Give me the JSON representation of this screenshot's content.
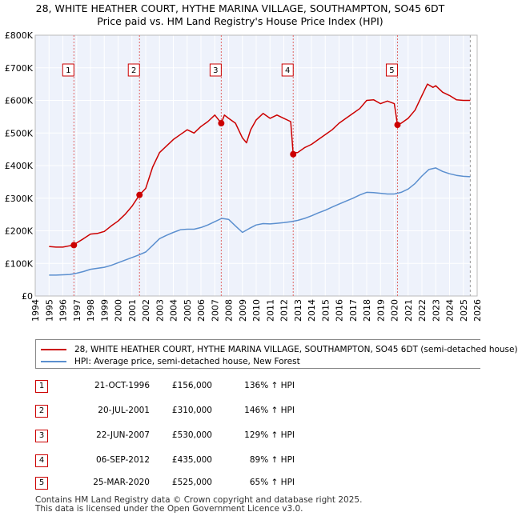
{
  "title_line1": "28, WHITE HEATHER COURT, HYTHE MARINA VILLAGE, SOUTHAMPTON, SO45 6DT",
  "title_line2": "Price paid vs. HM Land Registry's House Price Index (HPI)",
  "chart_data": {
    "type": "line",
    "title": "28, WHITE HEATHER COURT, HYTHE MARINA VILLAGE, SOUTHAMPTON, SO45 6DT",
    "subtitle": "Price paid vs. HM Land Registry's House Price Index (HPI)",
    "xlim": [
      1994,
      2026
    ],
    "ylim": [
      0,
      800000
    ],
    "x_ticks": [
      1994,
      1995,
      1996,
      1997,
      1998,
      1999,
      2000,
      2001,
      2002,
      2003,
      2004,
      2005,
      2006,
      2007,
      2008,
      2009,
      2010,
      2011,
      2012,
      2013,
      2014,
      2015,
      2016,
      2017,
      2018,
      2019,
      2020,
      2021,
      2022,
      2023,
      2024,
      2025,
      2026
    ],
    "y_ticks": [
      0,
      100000,
      200000,
      300000,
      400000,
      500000,
      600000,
      700000,
      800000
    ],
    "y_tick_labels": [
      "£0",
      "£100K",
      "£200K",
      "£300K",
      "£400K",
      "£500K",
      "£600K",
      "£700K",
      "£800K"
    ],
    "data_end_year": 2025.5,
    "series": [
      {
        "name": "28, WHITE HEATHER COURT, HYTHE MARINA VILLAGE, SOUTHAMPTON, SO45 6DT (semi-detached house)",
        "color": "#cc0000",
        "x": [
          1995.0,
          1995.5,
          1996.0,
          1996.5,
          1996.8,
          1997.0,
          1997.5,
          1998.0,
          1998.5,
          1999.0,
          1999.5,
          2000.0,
          2000.5,
          2001.0,
          2001.55,
          2002.0,
          2002.5,
          2003.0,
          2003.5,
          2004.0,
          2004.5,
          2005.0,
          2005.5,
          2006.0,
          2006.5,
          2007.0,
          2007.47,
          2007.7,
          2008.0,
          2008.5,
          2009.0,
          2009.3,
          2009.6,
          2010.0,
          2010.5,
          2011.0,
          2011.5,
          2012.0,
          2012.5,
          2012.68,
          2012.8,
          2013.0,
          2013.5,
          2014.0,
          2014.5,
          2015.0,
          2015.5,
          2016.0,
          2016.5,
          2017.0,
          2017.5,
          2018.0,
          2018.5,
          2019.0,
          2019.5,
          2020.0,
          2020.23,
          2020.5,
          2021.0,
          2021.5,
          2022.0,
          2022.4,
          2022.8,
          2023.0,
          2023.5,
          2024.0,
          2024.5,
          2025.0,
          2025.5
        ],
        "values": [
          152000,
          150000,
          150000,
          154000,
          156000,
          163000,
          176000,
          190000,
          192000,
          198000,
          215000,
          230000,
          250000,
          275000,
          310000,
          330000,
          395000,
          440000,
          460000,
          480000,
          495000,
          510000,
          500000,
          520000,
          535000,
          555000,
          530000,
          555000,
          545000,
          530000,
          485000,
          470000,
          510000,
          540000,
          560000,
          545000,
          555000,
          545000,
          535000,
          435000,
          440000,
          440000,
          455000,
          465000,
          480000,
          495000,
          510000,
          530000,
          545000,
          560000,
          575000,
          600000,
          602000,
          590000,
          598000,
          590000,
          525000,
          530000,
          545000,
          570000,
          615000,
          650000,
          640000,
          645000,
          625000,
          615000,
          602000,
          600000,
          600000
        ]
      },
      {
        "name": "HPI: Average price, semi-detached house, New Forest",
        "color": "#5b8fcf",
        "x": [
          1995.0,
          1995.5,
          1996.0,
          1996.5,
          1997.0,
          1997.5,
          1998.0,
          1998.5,
          1999.0,
          1999.5,
          2000.0,
          2000.5,
          2001.0,
          2001.5,
          2002.0,
          2002.5,
          2003.0,
          2003.5,
          2004.0,
          2004.5,
          2005.0,
          2005.5,
          2006.0,
          2006.5,
          2007.0,
          2007.5,
          2008.0,
          2008.5,
          2009.0,
          2009.5,
          2010.0,
          2010.5,
          2011.0,
          2011.5,
          2012.0,
          2012.5,
          2013.0,
          2013.5,
          2014.0,
          2014.5,
          2015.0,
          2015.5,
          2016.0,
          2016.5,
          2017.0,
          2017.5,
          2018.0,
          2018.5,
          2019.0,
          2019.5,
          2020.0,
          2020.5,
          2021.0,
          2021.5,
          2022.0,
          2022.5,
          2023.0,
          2023.5,
          2024.0,
          2024.5,
          2025.0,
          2025.5
        ],
        "values": [
          64000,
          64000,
          65000,
          66000,
          70000,
          75000,
          82000,
          85000,
          88000,
          94000,
          102000,
          110000,
          118000,
          126000,
          135000,
          155000,
          176000,
          186000,
          195000,
          203000,
          205000,
          205000,
          210000,
          218000,
          228000,
          238000,
          235000,
          215000,
          195000,
          207000,
          218000,
          222000,
          221000,
          223000,
          225000,
          228000,
          232000,
          238000,
          246000,
          255000,
          263000,
          273000,
          282000,
          291000,
          300000,
          310000,
          318000,
          317000,
          315000,
          313000,
          313000,
          318000,
          328000,
          345000,
          368000,
          388000,
          393000,
          382000,
          375000,
          370000,
          367000,
          366000
        ]
      }
    ],
    "purchase_markers": [
      {
        "label": "1",
        "x": 1996.8,
        "value": 156000
      },
      {
        "label": "2",
        "x": 2001.55,
        "value": 310000
      },
      {
        "label": "3",
        "x": 2007.47,
        "value": 530000
      },
      {
        "label": "4",
        "x": 2012.68,
        "value": 435000
      },
      {
        "label": "5",
        "x": 2020.23,
        "value": 525000
      }
    ]
  },
  "legend": {
    "property_label": "28, WHITE HEATHER COURT, HYTHE MARINA VILLAGE, SOUTHAMPTON, SO45 6DT (semi-detached house)",
    "hpi_label": "HPI: Average price, semi-detached house, New Forest",
    "property_color": "#cc0000",
    "hpi_color": "#5b8fcf"
  },
  "transactions": [
    {
      "num": "1",
      "date": "21-OCT-1996",
      "price": "£156,000",
      "hpi": "136% ↑ HPI"
    },
    {
      "num": "2",
      "date": "20-JUL-2001",
      "price": "£310,000",
      "hpi": "146% ↑ HPI"
    },
    {
      "num": "3",
      "date": "22-JUN-2007",
      "price": "£530,000",
      "hpi": "129% ↑ HPI"
    },
    {
      "num": "4",
      "date": "06-SEP-2012",
      "price": "£435,000",
      "hpi": "89% ↑ HPI"
    },
    {
      "num": "5",
      "date": "25-MAR-2020",
      "price": "£525,000",
      "hpi": "65% ↑ HPI"
    }
  ],
  "footer_line1": "Contains HM Land Registry data © Crown copyright and database right 2025.",
  "footer_line2": "This data is licensed under the Open Government Licence v3.0."
}
